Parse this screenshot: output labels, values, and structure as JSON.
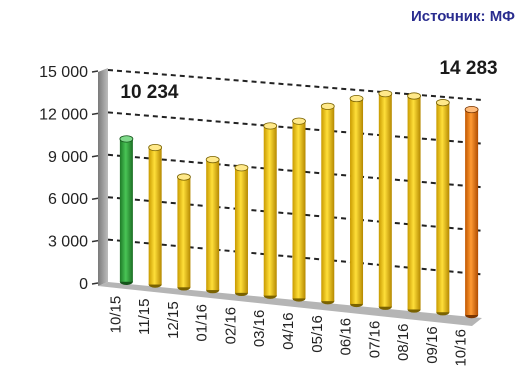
{
  "source_label": "Источник: МФ",
  "chart_data": {
    "type": "bar",
    "categories": [
      "10/15",
      "11/15",
      "12/15",
      "01/16",
      "02/16",
      "03/16",
      "04/16",
      "05/16",
      "06/16",
      "07/16",
      "08/16",
      "09/16",
      "10/16"
    ],
    "values": [
      10234,
      9800,
      7900,
      9300,
      8900,
      12000,
      12500,
      13700,
      14400,
      14900,
      14900,
      14600,
      14283
    ],
    "ylim": [
      0,
      15000
    ],
    "yticks": [
      "0",
      "3 000",
      "6 000",
      "9 000",
      "12 000",
      "15 000"
    ],
    "ytick_values": [
      0,
      3000,
      6000,
      9000,
      12000,
      15000
    ],
    "data_labels": [
      {
        "index": 0,
        "text": "10 234"
      },
      {
        "index": 12,
        "text": "14 283"
      }
    ],
    "colors": {
      "first_bar": "#2fa33a",
      "middle_bars": "#f2c300",
      "last_bar": "#f07a12",
      "wall": "#9a9a9a",
      "floor": "#b5b5b5",
      "grid": "#222222"
    },
    "grid": true,
    "legend": "none"
  }
}
